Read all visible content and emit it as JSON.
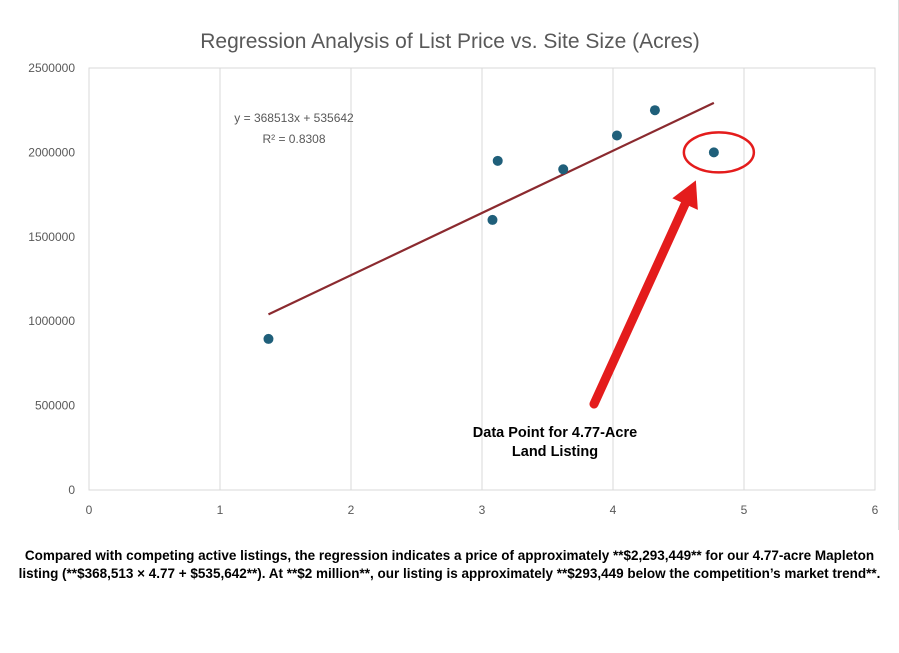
{
  "chart_data": {
    "type": "scatter",
    "title": "Regression Analysis of List Price vs. Site Size (Acres)",
    "xlim": [
      0,
      6
    ],
    "ylim": [
      0,
      2500000
    ],
    "x_ticks": [
      "0",
      "1",
      "2",
      "3",
      "4",
      "5",
      "6"
    ],
    "y_ticks": [
      "0",
      "500000",
      "1000000",
      "1500000",
      "2000000",
      "2500000"
    ],
    "grid": "vertical",
    "points": [
      {
        "x": 1.37,
        "y": 895000
      },
      {
        "x": 3.08,
        "y": 1600000
      },
      {
        "x": 3.12,
        "y": 1950000
      },
      {
        "x": 3.62,
        "y": 1900000
      },
      {
        "x": 4.03,
        "y": 2100000
      },
      {
        "x": 4.32,
        "y": 2250000
      },
      {
        "x": 4.77,
        "y": 2000000
      }
    ],
    "point_color": "#1f5f7a",
    "trendline": {
      "slope": 368513,
      "intercept": 535642,
      "x_start": 1.37,
      "x_end": 4.77,
      "color": "#8b2a2f",
      "equation_label": "y = 368513x + 535642",
      "r2_label": "R² = 0.8308"
    },
    "annotation": {
      "highlight_x": 4.77,
      "highlight_y": 2000000,
      "color": "#e41c1c",
      "label_line1": "Data Point for 4.77-Acre",
      "label_line2": "Land Listing"
    }
  },
  "caption": {
    "text": "Compared with competing active listings, the regression indicates a price of approximately **$2,293,449** for our 4.77-acre Mapleton listing (**$368,513 × 4.77 + $535,642**). At **$2 million**, our listing is approximately **$293,449 below the competition’s market trend**."
  }
}
